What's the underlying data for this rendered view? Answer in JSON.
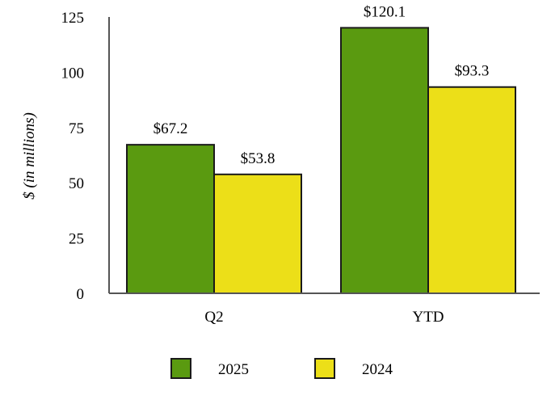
{
  "chart_data": {
    "type": "bar",
    "title": "",
    "xlabel": "",
    "ylabel": "$ (in millions)",
    "categories": [
      "Q2",
      "YTD"
    ],
    "series": [
      {
        "name": "2025",
        "values": [
          67.2,
          120.1
        ],
        "labels": [
          "$67.2",
          "$120.1"
        ],
        "color": "#5a9a10"
      },
      {
        "name": "2024",
        "values": [
          53.8,
          93.3
        ],
        "labels": [
          "$53.8",
          "$93.3"
        ],
        "color": "#ecdf18"
      }
    ],
    "ylim": [
      0,
      125
    ],
    "yticks": [
      "0",
      "25",
      "50",
      "75",
      "100",
      "125"
    ],
    "grid": false,
    "legend_position": "bottom"
  }
}
